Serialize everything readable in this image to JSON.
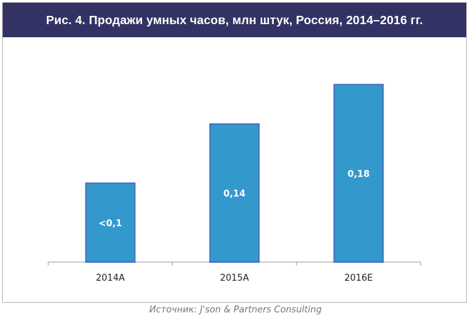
{
  "chart_data": {
    "type": "bar",
    "title": "Рис. 4. Продажи умных часов, млн штук, Россия, 2014–2016 гг.",
    "categories": [
      "2014A",
      "2015A",
      "2016E"
    ],
    "values": [
      0.08,
      0.14,
      0.18
    ],
    "data_labels": [
      "<0,1",
      "0,14",
      "0,18"
    ],
    "xlabel": "",
    "ylabel": "",
    "ylim": [
      0,
      0.2
    ],
    "grid": false,
    "bar_color": "#3399cc",
    "bar_border_color": "#4a6fc0"
  },
  "header": {
    "background": "#323264"
  },
  "source": "Источник: J'son & Partners Consulting"
}
